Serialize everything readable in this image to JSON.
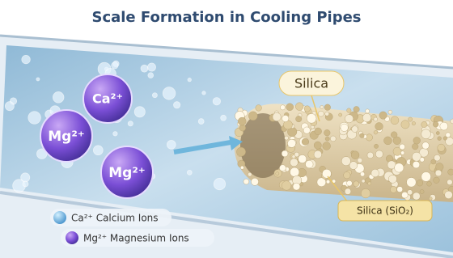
{
  "title": "Scale Formation in Cooling Pipes",
  "ions": [
    {
      "label": "Ca²⁺"
    },
    {
      "label": "Mg²⁺"
    },
    {
      "label": "Mg²⁺"
    }
  ],
  "callouts": [
    "Silica",
    "Silica (SiO₂)"
  ],
  "legend": [
    {
      "label": "Ca²⁺ Calcium Ions"
    },
    {
      "label": "Mg²⁺ Magnesium Ions"
    }
  ]
}
